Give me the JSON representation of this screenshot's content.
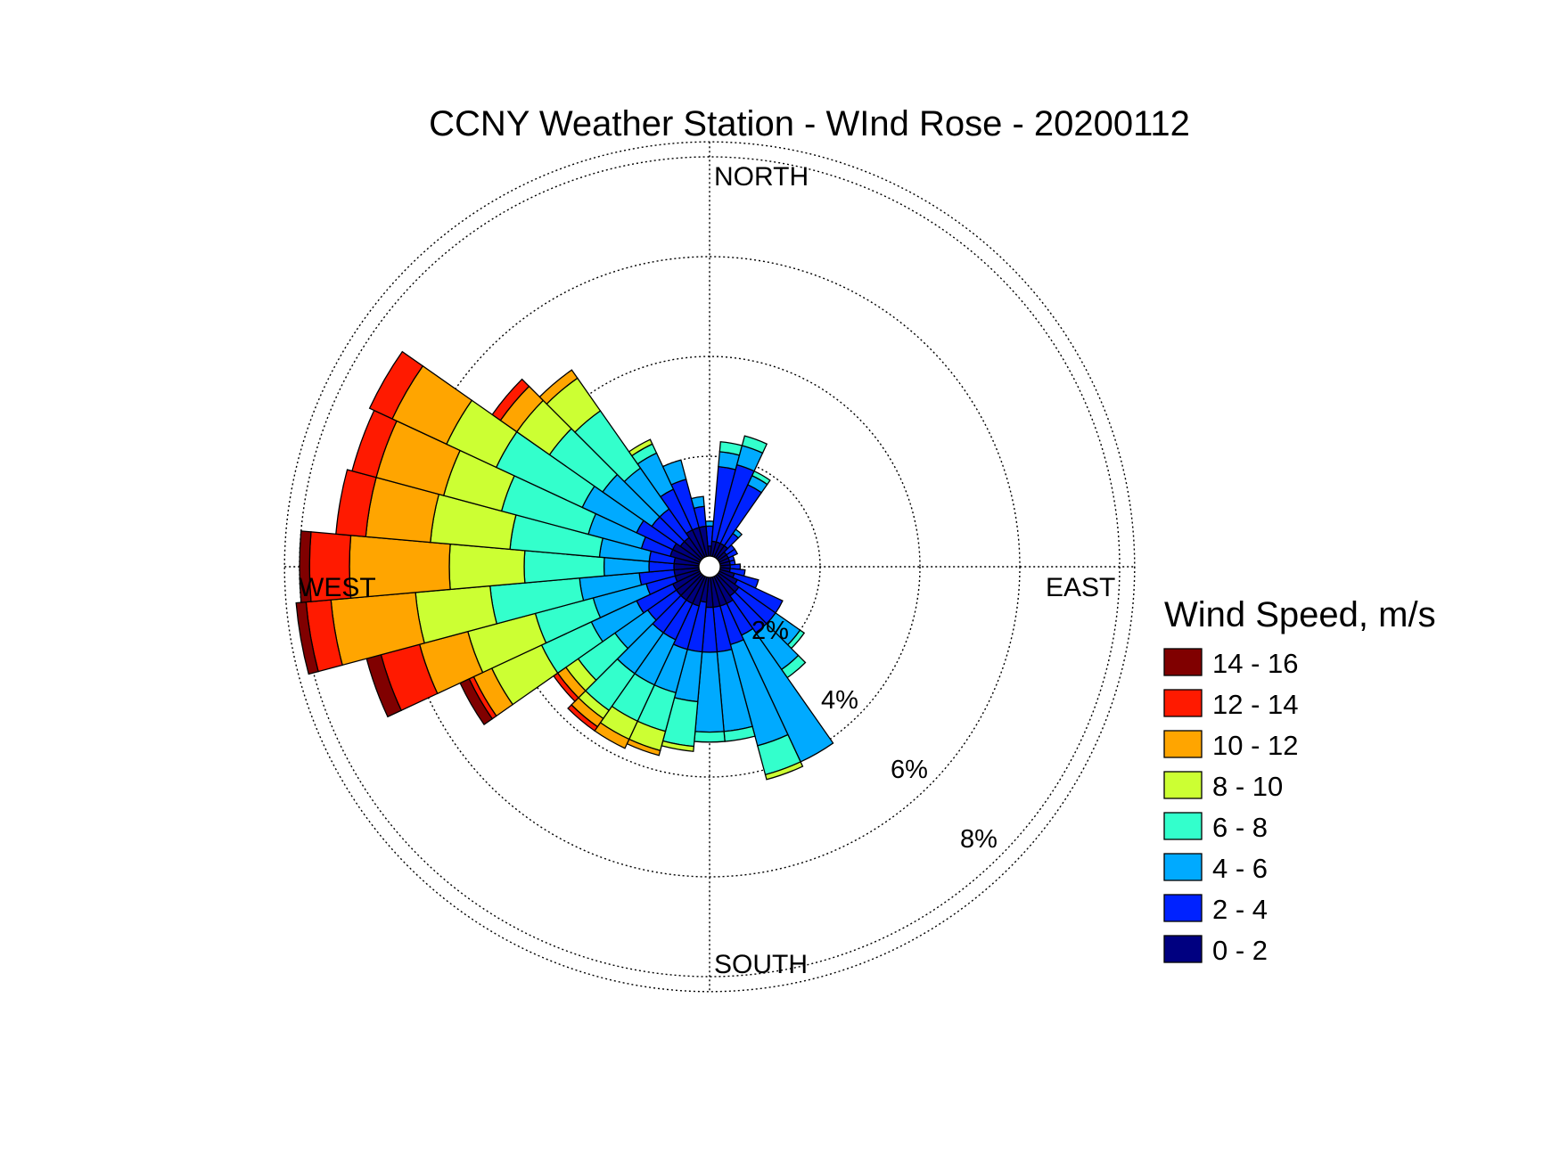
{
  "chart_data": {
    "type": "wind-rose",
    "title": "CCNY Weather Station - WInd Rose - 20200112",
    "direction_labels": {
      "north": "NORTH",
      "east": "EAST",
      "south": "SOUTH",
      "west": "WEST"
    },
    "ring_labels": [
      "2%",
      "4%",
      "6%",
      "8%"
    ],
    "ring_values": [
      2,
      4,
      6,
      8
    ],
    "legend": {
      "title": "Wind Speed, m/s",
      "placement": "right",
      "bins": [
        {
          "label": "14 - 16",
          "color": "#800000"
        },
        {
          "label": "12 - 14",
          "color": "#ff1a00"
        },
        {
          "label": "10 - 12",
          "color": "#ffa500"
        },
        {
          "label": "8 - 10",
          "color": "#ccff33"
        },
        {
          "label": "6 - 8",
          "color": "#33ffcc"
        },
        {
          "label": "4 - 6",
          "color": "#00aaff"
        },
        {
          "label": "2 - 4",
          "color": "#0022ff"
        },
        {
          "label": "0 - 2",
          "color": "#000080"
        }
      ]
    },
    "sector_width_deg": 10,
    "stack_order": [
      "0 - 2",
      "2 - 4",
      "4 - 6",
      "6 - 8",
      "8 - 10",
      "10 - 12",
      "12 - 14",
      "14 - 16"
    ],
    "sectors": [
      {
        "direction": 0,
        "cumulative_pct": [
          0.2,
          0.6,
          0.7
        ]
      },
      {
        "direction": 10,
        "cumulative_pct": [
          0.3,
          1.8,
          2.1,
          2.3
        ]
      },
      {
        "direction": 20,
        "cumulative_pct": [
          0.3,
          1.9,
          2.3,
          2.5
        ]
      },
      {
        "direction": 30,
        "cumulative_pct": [
          0.3,
          1.6,
          1.8,
          1.9
        ]
      },
      {
        "direction": 40,
        "cumulative_pct": [
          0.3,
          0.6,
          0.7
        ]
      },
      {
        "direction": 50,
        "cumulative_pct": [
          0.2,
          0.4
        ]
      },
      {
        "direction": 60,
        "cumulative_pct": [
          0.2,
          0.4
        ]
      },
      {
        "direction": 70,
        "cumulative_pct": [
          0.2,
          0.3
        ]
      },
      {
        "direction": 80,
        "cumulative_pct": [
          0.2,
          0.3
        ]
      },
      {
        "direction": 90,
        "cumulative_pct": [
          0.2,
          0.4
        ]
      },
      {
        "direction": 100,
        "cumulative_pct": [
          0.2,
          0.5
        ]
      },
      {
        "direction": 110,
        "cumulative_pct": [
          0.3,
          0.8
        ]
      },
      {
        "direction": 120,
        "cumulative_pct": [
          0.4,
          1.4
        ]
      },
      {
        "direction": 130,
        "cumulative_pct": [
          0.5,
          1.4,
          2.0,
          2.1
        ]
      },
      {
        "direction": 140,
        "cumulative_pct": [
          0.5,
          1.4,
          2.3,
          2.5
        ]
      },
      {
        "direction": 150,
        "cumulative_pct": [
          0.6,
          1.3,
          4.1
        ]
      },
      {
        "direction": 160,
        "cumulative_pct": [
          0.6,
          1.4,
          3.5,
          4.1,
          4.2
        ]
      },
      {
        "direction": 170,
        "cumulative_pct": [
          0.6,
          1.5,
          3.1,
          3.3
        ]
      },
      {
        "direction": 180,
        "cumulative_pct": [
          0.6,
          1.5,
          3.1,
          3.3
        ]
      },
      {
        "direction": 190,
        "cumulative_pct": [
          0.5,
          1.5,
          2.5,
          3.4,
          3.5
        ]
      },
      {
        "direction": 200,
        "cumulative_pct": [
          0.6,
          1.5,
          2.4,
          3.2,
          3.6,
          3.7
        ]
      },
      {
        "direction": 210,
        "cumulative_pct": [
          0.6,
          1.4,
          2.4,
          3.2,
          3.6,
          3.8
        ]
      },
      {
        "direction": 220,
        "cumulative_pct": [
          0.6,
          1.4,
          2.4,
          3.3,
          3.5,
          3.7,
          3.8
        ]
      },
      {
        "direction": 230,
        "cumulative_pct": [
          0.6,
          1.3,
          2.1,
          3.0,
          3.3,
          3.5,
          3.6
        ]
      },
      {
        "direction": 240,
        "cumulative_pct": [
          0.6,
          1.4,
          2.4,
          3.5,
          4.6,
          5.0,
          5.1,
          5.3
        ]
      },
      {
        "direction": 250,
        "cumulative_pct": [
          0.5,
          1.1,
          2.2,
          3.4,
          4.8,
          5.8,
          6.6,
          6.9
        ]
      },
      {
        "direction": 260,
        "cumulative_pct": [
          0.5,
          1.2,
          2.4,
          4.2,
          5.7,
          7.4,
          7.9,
          8.1
        ]
      },
      {
        "direction": 270,
        "cumulative_pct": [
          0.5,
          1.0,
          1.9,
          3.5,
          5.0,
          7.0,
          7.8,
          8.0
        ]
      },
      {
        "direction": 280,
        "cumulative_pct": [
          0.5,
          1.0,
          2.0,
          3.8,
          5.4,
          6.7,
          7.3
        ]
      },
      {
        "direction": 290,
        "cumulative_pct": [
          0.6,
          1.2,
          2.3,
          4.1,
          5.3,
          6.7,
          7.2
        ]
      },
      {
        "direction": 300,
        "cumulative_pct": [
          0.6,
          1.4,
          2.6,
          4.5,
          5.6,
          6.8,
          7.3
        ]
      },
      {
        "direction": 310,
        "cumulative_pct": [
          0.5,
          1.2,
          2.4,
          3.7,
          4.5,
          4.9,
          5.1
        ]
      },
      {
        "direction": 320,
        "cumulative_pct": [
          0.5,
          1.2,
          2.2,
          3.6,
          4.4,
          4.6
        ]
      },
      {
        "direction": 330,
        "cumulative_pct": [
          0.6,
          1.5,
          2.3,
          2.5,
          2.6
        ]
      },
      {
        "direction": 340,
        "cumulative_pct": [
          0.6,
          1.6,
          2.0
        ]
      },
      {
        "direction": 350,
        "cumulative_pct": [
          0.6,
          1.0,
          1.2
        ]
      }
    ]
  }
}
